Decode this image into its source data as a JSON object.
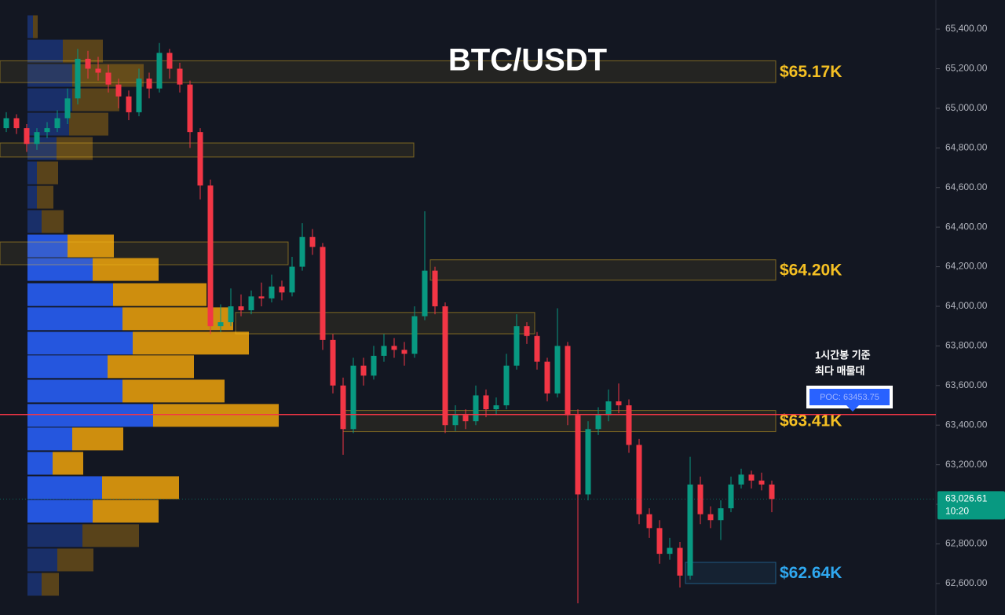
{
  "chart_data": {
    "type": "candlestick",
    "title": "BTC/USDT",
    "ylim": [
      62441,
      65547
    ],
    "yticks": [
      {
        "value": 62600,
        "label": "62,600.00"
      },
      {
        "value": 62800,
        "label": "62,800.00"
      },
      {
        "value": 63000,
        "label": "63,000.00"
      },
      {
        "value": 63200,
        "label": "63,200.00"
      },
      {
        "value": 63400,
        "label": "63,400.00"
      },
      {
        "value": 63600,
        "label": "63,600.00"
      },
      {
        "value": 63800,
        "label": "63,800.00"
      },
      {
        "value": 64000,
        "label": "64,000.00"
      },
      {
        "value": 64200,
        "label": "64,200.00"
      },
      {
        "value": 64400,
        "label": "64,400.00"
      },
      {
        "value": 64600,
        "label": "64,600.00"
      },
      {
        "value": 64800,
        "label": "64,800.00"
      },
      {
        "value": 65000,
        "label": "65,000.00"
      },
      {
        "value": 65200,
        "label": "65,200.00"
      },
      {
        "value": 65400,
        "label": "65,400.00"
      }
    ],
    "up_color": "#089981",
    "down_color": "#f23645",
    "candles": [
      [
        64900,
        64980,
        64880,
        64950
      ],
      [
        64950,
        64970,
        64870,
        64900
      ],
      [
        64900,
        64920,
        64780,
        64820
      ],
      [
        64820,
        64900,
        64790,
        64880
      ],
      [
        64880,
        64930,
        64850,
        64900
      ],
      [
        64900,
        64990,
        64880,
        64950
      ],
      [
        64950,
        65100,
        64920,
        65050
      ],
      [
        65050,
        65300,
        65020,
        65250
      ],
      [
        65250,
        65290,
        65150,
        65200
      ],
      [
        65200,
        65260,
        65140,
        65180
      ],
      [
        65180,
        65220,
        65080,
        65120
      ],
      [
        65120,
        65150,
        65000,
        65060
      ],
      [
        65060,
        65090,
        64940,
        64980
      ],
      [
        64980,
        65200,
        64960,
        65150
      ],
      [
        65150,
        65180,
        65050,
        65100
      ],
      [
        65100,
        65330,
        65080,
        65280
      ],
      [
        65280,
        65300,
        65150,
        65200
      ],
      [
        65200,
        65230,
        65080,
        65120
      ],
      [
        65120,
        65140,
        64800,
        64880
      ],
      [
        64880,
        64900,
        64540,
        64610
      ],
      [
        64610,
        64640,
        63860,
        63900
      ],
      [
        63900,
        64010,
        63870,
        63920
      ],
      [
        63920,
        64090,
        63900,
        64000
      ],
      [
        64000,
        64060,
        63950,
        63980
      ],
      [
        63980,
        64080,
        63960,
        64050
      ],
      [
        64050,
        64120,
        64000,
        64040
      ],
      [
        64040,
        64160,
        64020,
        64100
      ],
      [
        64100,
        64130,
        64030,
        64070
      ],
      [
        64070,
        64250,
        64050,
        64200
      ],
      [
        64200,
        64420,
        64180,
        64350
      ],
      [
        64350,
        64390,
        64260,
        64300
      ],
      [
        64300,
        64320,
        63780,
        63830
      ],
      [
        63830,
        63860,
        63560,
        63600
      ],
      [
        63600,
        63640,
        63250,
        63380
      ],
      [
        63380,
        63740,
        63360,
        63700
      ],
      [
        63700,
        63740,
        63600,
        63650
      ],
      [
        63650,
        63800,
        63630,
        63750
      ],
      [
        63750,
        63860,
        63720,
        63800
      ],
      [
        63800,
        63840,
        63740,
        63780
      ],
      [
        63780,
        63820,
        63700,
        63760
      ],
      [
        63760,
        64000,
        63740,
        63950
      ],
      [
        63950,
        64480,
        63930,
        64180
      ],
      [
        64180,
        64200,
        63960,
        64000
      ],
      [
        64000,
        64020,
        63360,
        63400
      ],
      [
        63400,
        63500,
        63370,
        63450
      ],
      [
        63450,
        63480,
        63380,
        63420
      ],
      [
        63420,
        63600,
        63400,
        63550
      ],
      [
        63550,
        63580,
        63440,
        63480
      ],
      [
        63480,
        63540,
        63450,
        63500
      ],
      [
        63500,
        63760,
        63480,
        63700
      ],
      [
        63700,
        63960,
        63680,
        63900
      ],
      [
        63900,
        63920,
        63810,
        63850
      ],
      [
        63850,
        63870,
        63680,
        63720
      ],
      [
        63720,
        63740,
        63520,
        63560
      ],
      [
        63560,
        63990,
        63540,
        63800
      ],
      [
        63800,
        63820,
        63400,
        63450
      ],
      [
        63450,
        63480,
        62500,
        63050
      ],
      [
        63050,
        63420,
        63020,
        63380
      ],
      [
        63380,
        63490,
        63350,
        63450
      ],
      [
        63450,
        63580,
        63420,
        63520
      ],
      [
        63520,
        63610,
        63460,
        63500
      ],
      [
        63500,
        63530,
        63260,
        63300
      ],
      [
        63300,
        63330,
        62900,
        62950
      ],
      [
        62950,
        62980,
        62830,
        62880
      ],
      [
        62880,
        62920,
        62700,
        62750
      ],
      [
        62750,
        62830,
        62720,
        62780
      ],
      [
        62780,
        62810,
        62580,
        62640
      ],
      [
        62640,
        63240,
        62620,
        63100
      ],
      [
        63100,
        63140,
        62900,
        62950
      ],
      [
        62950,
        62990,
        62880,
        62920
      ],
      [
        62920,
        63020,
        62820,
        62980
      ],
      [
        62980,
        63140,
        62960,
        63100
      ],
      [
        63100,
        63180,
        63080,
        63150
      ],
      [
        63150,
        63170,
        63080,
        63120
      ],
      [
        63120,
        63160,
        63070,
        63100
      ],
      [
        63100,
        63120,
        62960,
        63026.61
      ]
    ],
    "volume_profile": {
      "levels": [
        65412,
        65289,
        65166,
        65043,
        64920,
        64797,
        64674,
        64551,
        64428,
        64305,
        64186,
        64059,
        63937,
        63814,
        63695,
        63572,
        63449,
        63330,
        63207,
        63084,
        62965,
        62842,
        62719,
        62596
      ],
      "buy": [
        7,
        45,
        57,
        57,
        53,
        37,
        12,
        12,
        18,
        51,
        83,
        109,
        121,
        134,
        102,
        121,
        160,
        57,
        32,
        95,
        83,
        70,
        38,
        18
      ],
      "sell": [
        6,
        51,
        91,
        60,
        50,
        46,
        27,
        21,
        28,
        59,
        84,
        119,
        141,
        148,
        110,
        130,
        160,
        65,
        39,
        98,
        84,
        72,
        46,
        22
      ],
      "buy_color": "#2962ff",
      "sell_color": "#f0a30a",
      "value_area": [
        62900,
        64360
      ]
    },
    "zones": [
      {
        "top": 65240,
        "bottom": 65130,
        "label": "$65.17K",
        "color": "#f5c023"
      },
      {
        "top": 64235,
        "bottom": 64132,
        "label": "$64.20K",
        "color": "#f5c023"
      },
      {
        "top": 63474,
        "bottom": 63367,
        "label": "$63.41K",
        "color": "#f5c023"
      },
      {
        "top": 62707,
        "bottom": 62600,
        "label": "$62.64K",
        "color": "#2fa8f0"
      },
      {
        "top": 64825,
        "bottom": 64754,
        "color": "#f5c023"
      },
      {
        "top": 64325,
        "bottom": 64210,
        "color": "#f5c023"
      },
      {
        "top": 63969,
        "bottom": 63861,
        "color": "#f5c023"
      }
    ],
    "poc": {
      "value": 63453.75,
      "label": "POC: 63453.75",
      "color": "#f23645"
    },
    "annotation": [
      "1시간봉 기준",
      "최다 매물대"
    ],
    "last_price": {
      "value": 63026.61,
      "label": "63,026.61"
    },
    "last_time": "10:20"
  }
}
